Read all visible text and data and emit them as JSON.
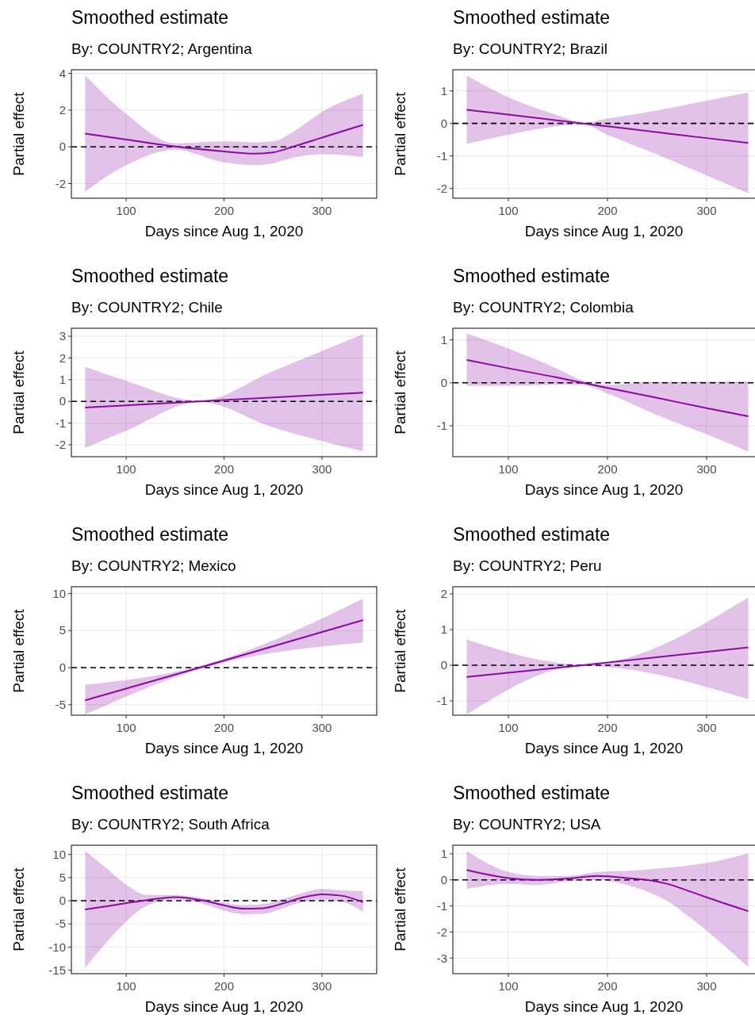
{
  "chart_data": [
    {
      "type": "line",
      "title": "Smoothed estimate",
      "subtitle": "By: COUNTRY2; Argentina",
      "xlabel": "Days since Aug 1, 2020",
      "ylabel": "Partial effect",
      "x": [
        58,
        100,
        150,
        200,
        230,
        250,
        270,
        300,
        342
      ],
      "series": [
        {
          "color": "#8b0aa5",
          "values": [
            0.72,
            0.4,
            0.02,
            -0.25,
            -0.37,
            -0.3,
            0,
            0.5,
            1.2
          ],
          "lower": [
            -2.45,
            -1.0,
            -0.15,
            -0.85,
            -1.0,
            -0.9,
            -0.6,
            -0.4,
            -0.55
          ],
          "upper": [
            3.9,
            1.8,
            0.2,
            0.3,
            0.25,
            0.3,
            0.8,
            1.9,
            2.9
          ]
        }
      ],
      "xlim": [
        44,
        356
      ],
      "ylim": [
        -2.8,
        4.2
      ],
      "xticks": [
        100,
        200,
        300
      ],
      "yticks": [
        -2,
        0,
        2,
        4
      ],
      "grid": true,
      "ref_lines": [
        {
          "axis": "y",
          "value": 0,
          "color": "#000000",
          "line_style": "dashed"
        }
      ]
    },
    {
      "type": "line",
      "title": "Smoothed estimate",
      "subtitle": "By: COUNTRY2; Brazil",
      "xlabel": "Days since Aug 1, 2020",
      "ylabel": "Partial effect",
      "x": [
        58,
        100,
        150,
        175,
        200,
        250,
        300,
        342
      ],
      "series": [
        {
          "color": "#8b0aa5",
          "values": [
            0.42,
            0.27,
            0.09,
            0,
            -0.09,
            -0.27,
            -0.45,
            -0.6
          ],
          "lower": [
            -0.63,
            -0.35,
            -0.08,
            -0.02,
            -0.35,
            -0.95,
            -1.6,
            -2.15
          ],
          "upper": [
            1.48,
            0.8,
            0.25,
            0.02,
            0.15,
            0.4,
            0.7,
            0.95
          ]
        }
      ],
      "xlim": [
        44,
        356
      ],
      "ylim": [
        -2.3,
        1.65
      ],
      "xticks": [
        100,
        200,
        300
      ],
      "yticks": [
        -2,
        -1,
        0,
        1
      ],
      "grid": true,
      "ref_lines": [
        {
          "axis": "y",
          "value": 0,
          "color": "#000000",
          "line_style": "dashed"
        }
      ]
    },
    {
      "type": "line",
      "title": "Smoothed estimate",
      "subtitle": "By: COUNTRY2; Chile",
      "xlabel": "Days since Aug 1, 2020",
      "ylabel": "Partial effect",
      "x": [
        58,
        100,
        175,
        250,
        342
      ],
      "series": [
        {
          "color": "#8b0aa5",
          "values": [
            -0.28,
            -0.18,
            0,
            0.18,
            0.4
          ],
          "lower": [
            -2.15,
            -1.35,
            -0.02,
            -1.2,
            -2.3
          ],
          "upper": [
            1.6,
            0.95,
            0.02,
            1.4,
            3.1
          ]
        }
      ],
      "xlim": [
        44,
        356
      ],
      "ylim": [
        -2.55,
        3.37
      ],
      "xticks": [
        100,
        200,
        300
      ],
      "yticks": [
        -2,
        -1,
        0,
        1,
        2,
        3
      ],
      "grid": true,
      "ref_lines": [
        {
          "axis": "y",
          "value": 0,
          "color": "#000000",
          "line_style": "dashed"
        }
      ]
    },
    {
      "type": "line",
      "title": "Smoothed estimate",
      "subtitle": "By: COUNTRY2; Colombia",
      "xlabel": "Days since Aug 1, 2020",
      "ylabel": "Partial effect",
      "x": [
        58,
        100,
        150,
        175,
        200,
        250,
        300,
        342
      ],
      "series": [
        {
          "color": "#8b0aa5",
          "values": [
            0.53,
            0.34,
            0.12,
            0,
            -0.12,
            -0.35,
            -0.59,
            -0.78
          ],
          "lower": [
            -0.07,
            -0.07,
            -0.04,
            -0.05,
            -0.25,
            -0.75,
            -1.2,
            -1.6
          ],
          "upper": [
            1.15,
            0.8,
            0.32,
            0.05,
            -0.05,
            0.02,
            0.03,
            0.03
          ]
        }
      ],
      "xlim": [
        44,
        356
      ],
      "ylim": [
        -1.72,
        1.27
      ],
      "xticks": [
        100,
        200,
        300
      ],
      "yticks": [
        -1,
        0,
        1
      ],
      "grid": true,
      "ref_lines": [
        {
          "axis": "y",
          "value": 0,
          "color": "#000000",
          "line_style": "dashed"
        }
      ]
    },
    {
      "type": "line",
      "title": "Smoothed estimate",
      "subtitle": "By: COUNTRY2; Mexico",
      "xlabel": "Days since Aug 1, 2020",
      "ylabel": "Partial effect",
      "x": [
        58,
        175,
        342
      ],
      "series": [
        {
          "color": "#8b0aa5",
          "values": [
            -4.4,
            0,
            6.4
          ],
          "lower": [
            -6.3,
            -0.2,
            3.4
          ],
          "upper": [
            -2.3,
            0.2,
            9.3
          ]
        }
      ],
      "xlim": [
        44,
        356
      ],
      "ylim": [
        -6.4,
        10.9
      ],
      "xticks": [
        100,
        200,
        300
      ],
      "yticks": [
        -5,
        0,
        5,
        10
      ],
      "grid": true,
      "ref_lines": [
        {
          "axis": "y",
          "value": 0,
          "color": "#000000",
          "line_style": "dashed"
        }
      ]
    },
    {
      "type": "line",
      "title": "Smoothed estimate",
      "subtitle": "By: COUNTRY2; Peru",
      "xlabel": "Days since Aug 1, 2020",
      "ylabel": "Partial effect",
      "x": [
        58,
        175,
        342
      ],
      "series": [
        {
          "color": "#8b0aa5",
          "values": [
            -0.33,
            0,
            0.5
          ],
          "lower": [
            -1.38,
            -0.02,
            -0.95
          ],
          "upper": [
            0.72,
            0.02,
            1.9
          ]
        }
      ],
      "xlim": [
        44,
        356
      ],
      "ylim": [
        -1.4,
        2.2
      ],
      "xticks": [
        100,
        200,
        300
      ],
      "yticks": [
        -1,
        0,
        1,
        2
      ],
      "grid": true,
      "ref_lines": [
        {
          "axis": "y",
          "value": 0,
          "color": "#000000",
          "line_style": "dashed"
        }
      ]
    },
    {
      "type": "line",
      "title": "Smoothed estimate",
      "subtitle": "By: COUNTRY2; South Africa",
      "xlabel": "Days since Aug 1, 2020",
      "ylabel": "Partial effect",
      "x": [
        58,
        80,
        100,
        120,
        150,
        180,
        200,
        220,
        240,
        260,
        280,
        300,
        320,
        342
      ],
      "series": [
        {
          "color": "#8b0aa5",
          "values": [
            -1.9,
            -1.2,
            -0.5,
            0.1,
            0.8,
            0,
            -1.0,
            -1.7,
            -1.6,
            -0.6,
            0.7,
            1.4,
            1.1,
            -0.3
          ],
          "lower": [
            -14.5,
            -9,
            -4.5,
            -1.2,
            0.3,
            -0.7,
            -2.1,
            -2.9,
            -2.8,
            -1.6,
            -0.3,
            0.2,
            -0.2,
            -2.4
          ],
          "upper": [
            10.8,
            7,
            3.5,
            1.3,
            1.2,
            0.5,
            -0.4,
            -0.9,
            -0.7,
            0.4,
            1.7,
            2.6,
            2.3,
            2.1
          ]
        }
      ],
      "xlim": [
        44,
        356
      ],
      "ylim": [
        -15.75,
        12
      ],
      "xticks": [
        100,
        200,
        300
      ],
      "yticks": [
        -15,
        -10,
        -5,
        0,
        5,
        10
      ],
      "grid": true,
      "ref_lines": [
        {
          "axis": "y",
          "value": 0,
          "color": "#000000",
          "line_style": "dashed"
        }
      ]
    },
    {
      "type": "line",
      "title": "Smoothed estimate",
      "subtitle": "By: COUNTRY2; USA",
      "xlabel": "Days since Aug 1, 2020",
      "ylabel": "Partial effect",
      "x": [
        58,
        100,
        130,
        160,
        190,
        220,
        240,
        260,
        280,
        300,
        342
      ],
      "series": [
        {
          "color": "#8b0aa5",
          "values": [
            0.38,
            0.07,
            0,
            0.05,
            0.15,
            0.07,
            0,
            -0.15,
            -0.4,
            -0.67,
            -1.2
          ],
          "lower": [
            -0.35,
            -0.15,
            -0.2,
            -0.05,
            0,
            -0.2,
            -0.45,
            -0.8,
            -1.35,
            -1.95,
            -3.35
          ],
          "upper": [
            1.1,
            0.3,
            0.15,
            0.15,
            0.3,
            0.35,
            0.4,
            0.47,
            0.55,
            0.65,
            1.02
          ]
        }
      ],
      "xlim": [
        44,
        356
      ],
      "ylim": [
        -3.6,
        1.33
      ],
      "xticks": [
        100,
        200,
        300
      ],
      "yticks": [
        -3,
        -2,
        -1,
        0,
        1
      ],
      "grid": true,
      "ref_lines": [
        {
          "axis": "y",
          "value": 0,
          "color": "#000000",
          "line_style": "dashed"
        }
      ]
    }
  ]
}
